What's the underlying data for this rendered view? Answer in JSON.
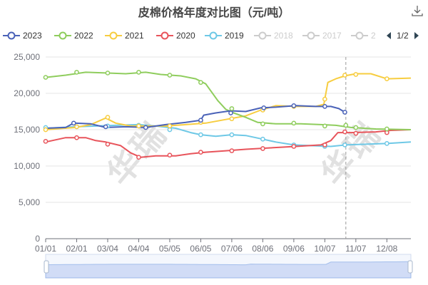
{
  "title": "皮棉价格年度对比图（元/吨）",
  "legend": {
    "items": [
      {
        "label": "2023",
        "color": "#4a62b8",
        "active": true
      },
      {
        "label": "2022",
        "color": "#8fcd5d",
        "active": true
      },
      {
        "label": "2021",
        "color": "#f7cd40",
        "active": true
      },
      {
        "label": "2020",
        "color": "#e8545b",
        "active": true
      },
      {
        "label": "2019",
        "color": "#6ec8e6",
        "active": true
      },
      {
        "label": "2018",
        "color": "#cccccc",
        "active": false
      },
      {
        "label": "2017",
        "color": "#cccccc",
        "active": false
      },
      {
        "label": "2",
        "color": "#cccccc",
        "active": false
      }
    ],
    "page": "1/2"
  },
  "watermark": "华瑞",
  "colors": {
    "grid": "#e6e6e6",
    "axis": "#6e7079",
    "crosshair": "#999999",
    "zoom_fill": "#c9d6f5",
    "zoom_line": "#8fb0e8"
  },
  "chart_data": {
    "type": "line",
    "title": "皮棉价格年度对比图（元/吨）",
    "xlabel": "",
    "ylabel": "",
    "ylim": [
      0,
      25000
    ],
    "y_ticks": [
      0,
      5000,
      10000,
      15000,
      20000,
      25000
    ],
    "y_tick_labels": [
      "0",
      "5,000",
      "10,000",
      "15,000",
      "20,000",
      "25,000"
    ],
    "x_ticks": [
      0,
      31,
      62,
      93,
      124,
      155,
      186,
      217,
      248,
      279,
      310,
      341
    ],
    "x_tick_labels": [
      "01/01",
      "02/01",
      "03/04",
      "04/04",
      "05/05",
      "06/05",
      "07/06",
      "08/06",
      "09/06",
      "10/07",
      "11/07",
      "12/08"
    ],
    "xlim": [
      0,
      365
    ],
    "crosshair_day": 300,
    "series": [
      {
        "name": "2023",
        "color": "#4a62b8",
        "points": [
          [
            0,
            15200
          ],
          [
            20,
            15300
          ],
          [
            28,
            15900
          ],
          [
            45,
            15800
          ],
          [
            60,
            15300
          ],
          [
            80,
            15400
          ],
          [
            100,
            15300
          ],
          [
            120,
            15700
          ],
          [
            140,
            16000
          ],
          [
            155,
            16300
          ],
          [
            158,
            17000
          ],
          [
            170,
            17300
          ],
          [
            185,
            17600
          ],
          [
            200,
            17500
          ],
          [
            215,
            18000
          ],
          [
            230,
            18100
          ],
          [
            250,
            18300
          ],
          [
            270,
            18200
          ],
          [
            285,
            18200
          ],
          [
            293,
            17900
          ],
          [
            299,
            17400
          ]
        ],
        "markers": [
          [
            28,
            15900
          ],
          [
            60,
            15400
          ],
          [
            100,
            15300
          ],
          [
            155,
            16300
          ],
          [
            185,
            17300
          ],
          [
            218,
            18000
          ],
          [
            248,
            18300
          ],
          [
            279,
            18200
          ],
          [
            299,
            17400
          ]
        ]
      },
      {
        "name": "2022",
        "color": "#8fcd5d",
        "points": [
          [
            0,
            22200
          ],
          [
            20,
            22500
          ],
          [
            40,
            22900
          ],
          [
            60,
            22800
          ],
          [
            80,
            22700
          ],
          [
            100,
            22900
          ],
          [
            115,
            22600
          ],
          [
            135,
            22400
          ],
          [
            150,
            22000
          ],
          [
            160,
            21300
          ],
          [
            172,
            19000
          ],
          [
            180,
            17800
          ],
          [
            188,
            17300
          ],
          [
            200,
            16700
          ],
          [
            212,
            16000
          ],
          [
            230,
            15800
          ],
          [
            255,
            15800
          ],
          [
            275,
            15700
          ],
          [
            290,
            15600
          ],
          [
            305,
            15300
          ],
          [
            330,
            15100
          ],
          [
            365,
            15000
          ]
        ],
        "markers": [
          [
            0,
            22200
          ],
          [
            31,
            22900
          ],
          [
            62,
            22800
          ],
          [
            93,
            22900
          ],
          [
            124,
            22500
          ],
          [
            155,
            21500
          ],
          [
            186,
            17900
          ],
          [
            217,
            15800
          ],
          [
            248,
            15900
          ],
          [
            279,
            15500
          ],
          [
            300,
            15600
          ],
          [
            310,
            15300
          ],
          [
            341,
            15100
          ]
        ]
      },
      {
        "name": "2021",
        "color": "#f7cd40",
        "points": [
          [
            0,
            15000
          ],
          [
            30,
            15300
          ],
          [
            45,
            15700
          ],
          [
            60,
            16600
          ],
          [
            70,
            15900
          ],
          [
            85,
            15500
          ],
          [
            100,
            15500
          ],
          [
            120,
            15500
          ],
          [
            140,
            15700
          ],
          [
            160,
            15900
          ],
          [
            180,
            16400
          ],
          [
            200,
            16900
          ],
          [
            215,
            17700
          ],
          [
            230,
            18300
          ],
          [
            250,
            18200
          ],
          [
            270,
            18200
          ],
          [
            278,
            18500
          ],
          [
            282,
            21500
          ],
          [
            290,
            22000
          ],
          [
            299,
            22400
          ],
          [
            310,
            22700
          ],
          [
            325,
            22700
          ],
          [
            341,
            22000
          ],
          [
            365,
            22100
          ]
        ],
        "markers": [
          [
            0,
            15000
          ],
          [
            31,
            15400
          ],
          [
            62,
            16700
          ],
          [
            93,
            15500
          ],
          [
            124,
            15500
          ],
          [
            155,
            16000
          ],
          [
            186,
            16500
          ],
          [
            217,
            17700
          ],
          [
            248,
            18200
          ],
          [
            279,
            19200
          ],
          [
            299,
            22500
          ],
          [
            310,
            22600
          ],
          [
            341,
            22000
          ]
        ]
      },
      {
        "name": "2020",
        "color": "#e8545b",
        "points": [
          [
            0,
            13300
          ],
          [
            20,
            13900
          ],
          [
            40,
            13900
          ],
          [
            50,
            13500
          ],
          [
            60,
            13300
          ],
          [
            75,
            12800
          ],
          [
            85,
            11800
          ],
          [
            95,
            11200
          ],
          [
            110,
            11400
          ],
          [
            130,
            11400
          ],
          [
            145,
            11700
          ],
          [
            160,
            11900
          ],
          [
            180,
            12100
          ],
          [
            200,
            12300
          ],
          [
            225,
            12500
          ],
          [
            250,
            12700
          ],
          [
            275,
            12900
          ],
          [
            285,
            13500
          ],
          [
            292,
            14600
          ],
          [
            305,
            14600
          ],
          [
            330,
            14700
          ],
          [
            345,
            14900
          ],
          [
            365,
            15000
          ]
        ],
        "markers": [
          [
            0,
            13400
          ],
          [
            31,
            13900
          ],
          [
            62,
            13000
          ],
          [
            93,
            11200
          ],
          [
            124,
            11500
          ],
          [
            155,
            11900
          ],
          [
            186,
            12100
          ],
          [
            217,
            12400
          ],
          [
            248,
            12700
          ],
          [
            279,
            12900
          ],
          [
            299,
            14700
          ],
          [
            310,
            14500
          ],
          [
            341,
            14600
          ]
        ]
      },
      {
        "name": "2019",
        "color": "#6ec8e6",
        "points": [
          [
            0,
            15200
          ],
          [
            30,
            15400
          ],
          [
            50,
            15500
          ],
          [
            70,
            15600
          ],
          [
            93,
            15700
          ],
          [
            110,
            15500
          ],
          [
            130,
            15200
          ],
          [
            145,
            14600
          ],
          [
            155,
            14300
          ],
          [
            170,
            14100
          ],
          [
            186,
            14300
          ],
          [
            200,
            14200
          ],
          [
            217,
            13700
          ],
          [
            230,
            13300
          ],
          [
            248,
            12900
          ],
          [
            265,
            12800
          ],
          [
            285,
            12700
          ],
          [
            300,
            12900
          ],
          [
            320,
            13000
          ],
          [
            341,
            13100
          ],
          [
            365,
            13300
          ]
        ],
        "markers": [
          [
            0,
            15300
          ],
          [
            31,
            15400
          ],
          [
            62,
            15500
          ],
          [
            93,
            15600
          ],
          [
            124,
            15000
          ],
          [
            155,
            14300
          ],
          [
            186,
            14300
          ],
          [
            217,
            13700
          ],
          [
            248,
            12900
          ],
          [
            279,
            12700
          ],
          [
            299,
            12900
          ],
          [
            341,
            13100
          ]
        ]
      }
    ]
  }
}
